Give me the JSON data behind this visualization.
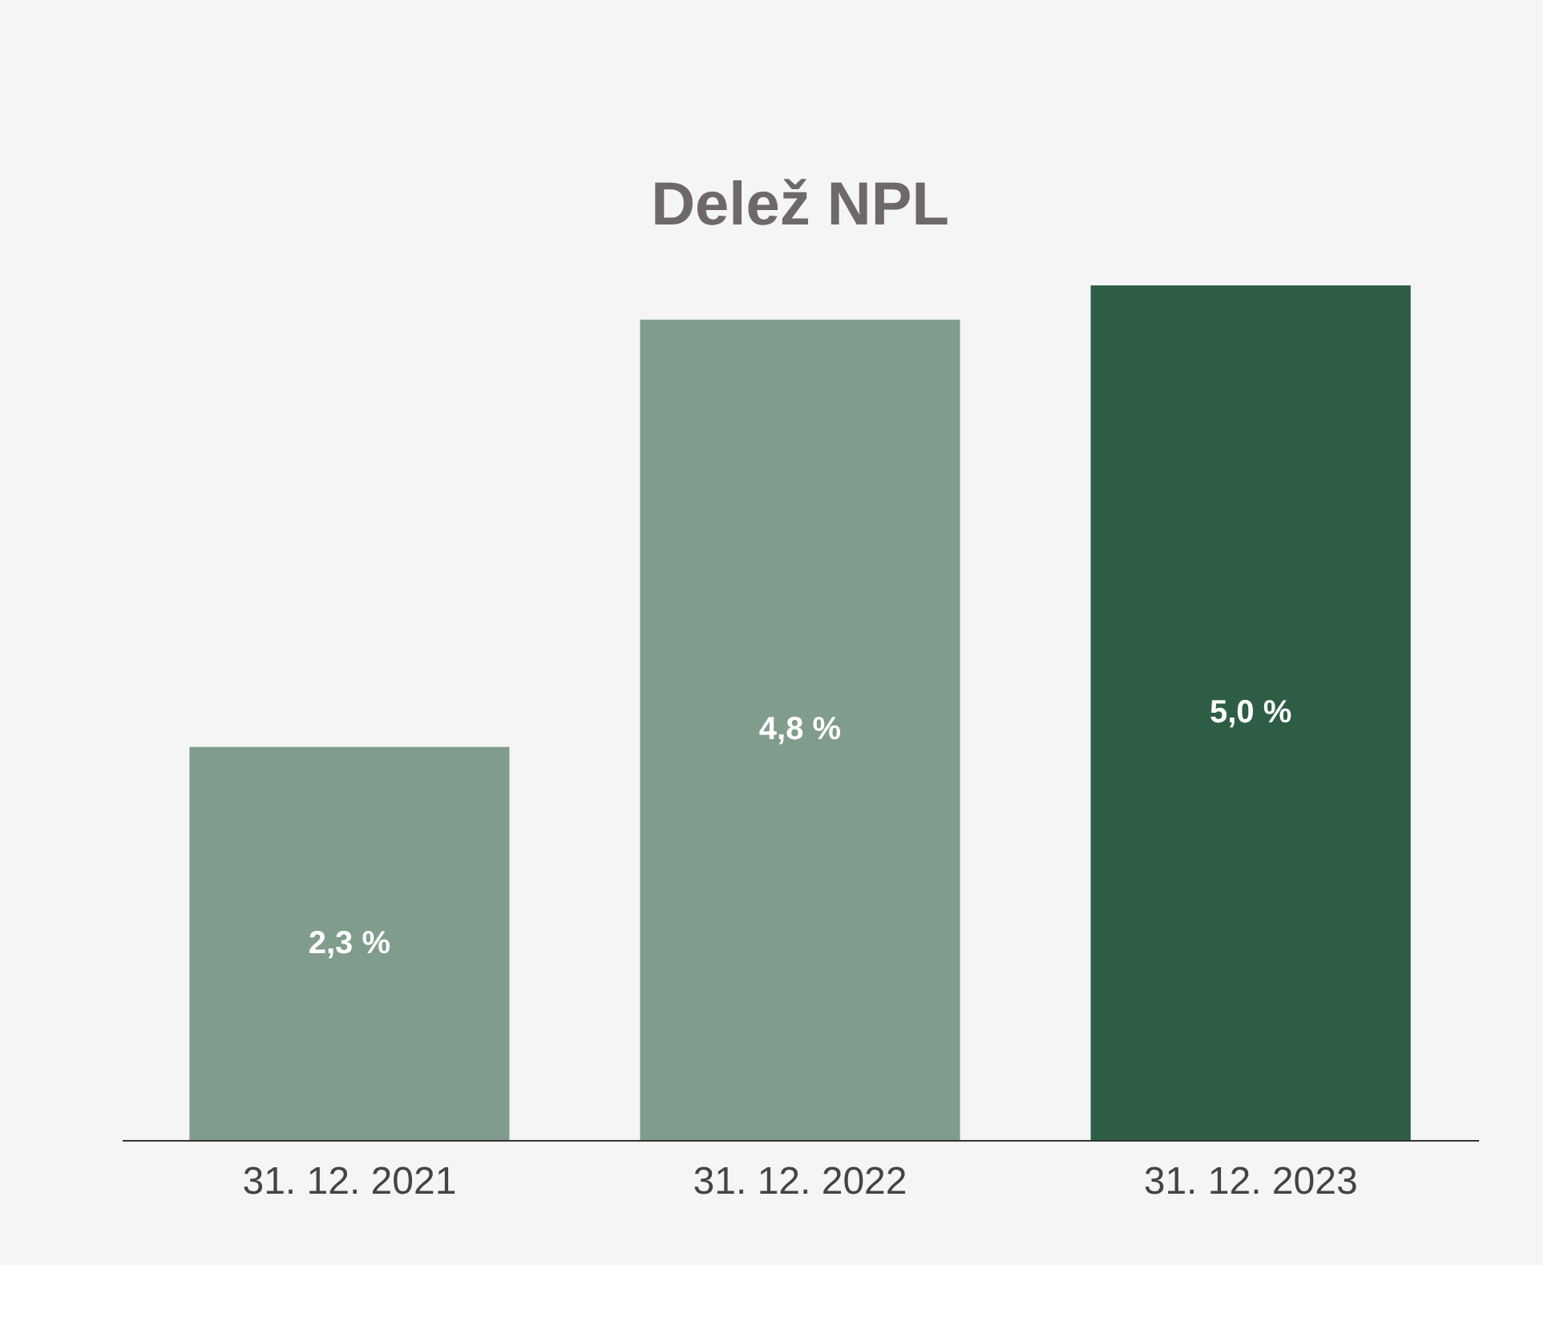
{
  "chart_data": {
    "type": "bar",
    "title": "Delež NPL",
    "categories": [
      "31. 12. 2021",
      "31. 12. 2022",
      "31. 12. 2023"
    ],
    "values": [
      2.3,
      4.8,
      5.0
    ],
    "colors": [
      "#809c8c",
      "#809c8c",
      "#2d5e45"
    ],
    "value_labels": [
      "2,3 %",
      "4,8 %",
      "5,0 %"
    ],
    "grid": false,
    "legend": false
  }
}
